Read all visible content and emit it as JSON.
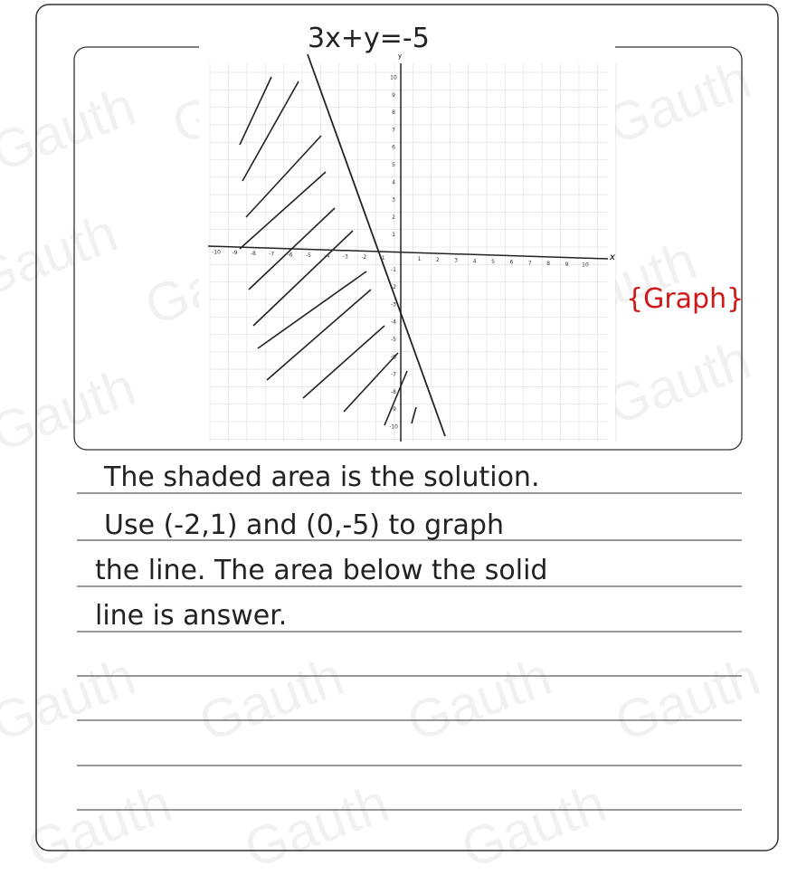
{
  "watermark": "Gauth",
  "graph": {
    "equation": "3x+y=-5",
    "x_label": "x",
    "y_label": "y",
    "x_ticks": [
      -10,
      -9,
      -8,
      -7,
      -6,
      -5,
      -4,
      -3,
      -2,
      -1,
      1,
      2,
      3,
      4,
      5,
      6,
      7,
      8,
      9,
      10
    ],
    "y_ticks": [
      -10,
      -9,
      -8,
      -7,
      -6,
      -5,
      -4,
      -3,
      -2,
      -1,
      1,
      2,
      3,
      4,
      5,
      6,
      7,
      8,
      9,
      10
    ],
    "tag": "{Graph}"
  },
  "notes": [
    "The shaded area is the solution.",
    "Use (-2,1) and (0,-5) to graph",
    "the line. The area below the solid",
    "line is answer."
  ]
}
